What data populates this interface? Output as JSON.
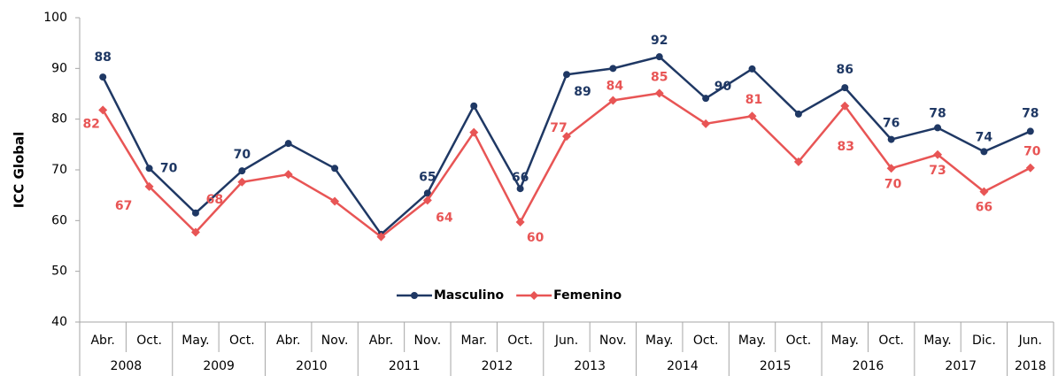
{
  "chart_data": {
    "type": "line",
    "y_label": "ICC Global",
    "categories": [
      "Abr.",
      "Oct.",
      "May.",
      "Oct.",
      "Abr.",
      "Nov.",
      "Abr.",
      "Nov.",
      "Mar.",
      "Oct.",
      "Jun.",
      "Nov.",
      "May.",
      "Oct.",
      "May.",
      "Oct.",
      "May.",
      "Oct.",
      "May.",
      "Dic.",
      "Jun."
    ],
    "years": [
      "2008",
      null,
      "2009",
      null,
      "2010",
      null,
      "2011",
      null,
      "2012",
      null,
      "2013",
      null,
      "2014",
      null,
      "2015",
      null,
      "2016",
      null,
      "2017",
      null,
      "2018"
    ],
    "series": [
      {
        "name": "Masculino",
        "color": "#1f3864",
        "marker": "circle",
        "values": [
          88.3,
          70.3,
          61.5,
          69.8,
          75.2,
          70.3,
          57.3,
          65.4,
          82.6,
          66.3,
          88.8,
          90.0,
          92.3,
          84.1,
          89.9,
          81.0,
          86.2,
          76.0,
          78.3,
          73.6,
          77.6
        ],
        "value_labels": [
          "88",
          "70",
          null,
          "70",
          null,
          null,
          null,
          "65",
          null,
          "66",
          "89",
          null,
          "92",
          null,
          "90",
          null,
          "86",
          "76",
          "78",
          "74",
          "78"
        ]
      },
      {
        "name": "Femenino",
        "color": "#e85555",
        "marker": "diamond",
        "values": [
          81.8,
          66.7,
          57.7,
          67.6,
          69.1,
          63.8,
          56.8,
          64.0,
          77.4,
          59.7,
          76.6,
          83.7,
          85.1,
          79.1,
          80.6,
          71.6,
          82.6,
          70.3,
          73.0,
          65.7,
          70.4
        ],
        "value_labels": [
          "82",
          "67",
          null,
          "68",
          null,
          null,
          null,
          "64",
          null,
          "60",
          "77",
          "84",
          "85",
          null,
          "81",
          null,
          "83",
          "70",
          "73",
          "66",
          "70"
        ]
      }
    ],
    "ylim": [
      40,
      100
    ],
    "yticks": [
      40,
      50,
      60,
      70,
      80,
      90,
      100
    ],
    "grid": false,
    "legend": "bottom"
  }
}
